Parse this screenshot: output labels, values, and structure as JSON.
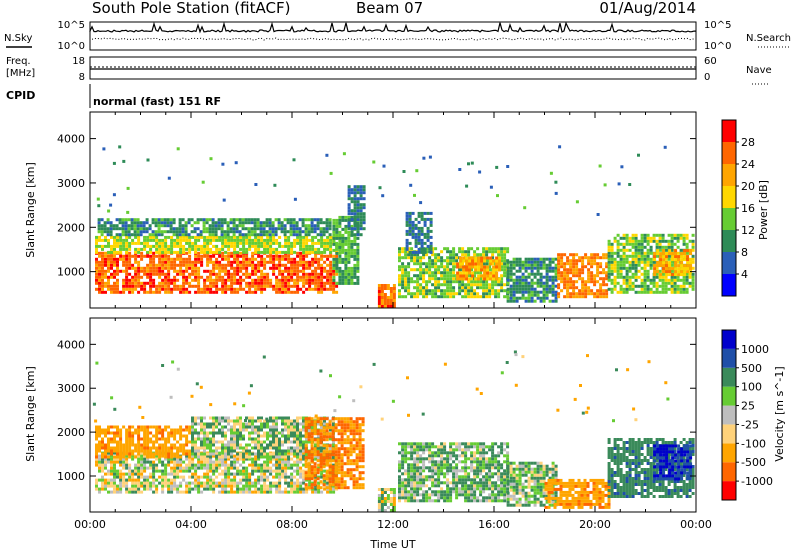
{
  "header": {
    "station": "South Pole Station (fitACF)",
    "beam": "Beam 07",
    "date": "01/Aug/2014"
  },
  "top_panels": {
    "nsky_label": "N.Sky",
    "nsky_ticks": [
      "10^5",
      "10^0"
    ],
    "nsearch_label": "N.Search",
    "nsearch_ticks": [
      "10^5",
      "10^0"
    ],
    "freq_label": "Freq.",
    "freq_unit": "[MHz]",
    "freq_ticks": [
      "18",
      "8"
    ],
    "nave_label": "Nave",
    "nave_ticks": [
      "60",
      "0"
    ],
    "cpid_label": "CPID",
    "cpid_text": "normal (fast) 151 RF"
  },
  "colors": {
    "power": [
      "#0000ff",
      "#2a5fb8",
      "#2e8b57",
      "#66cc33",
      "#ffd700",
      "#ffa500",
      "#ff6600",
      "#ff0000"
    ],
    "velocity": [
      "#ff0000",
      "#ff6600",
      "#ffa500",
      "#ffd27a",
      "#bebebe",
      "#66cc33",
      "#3a8a5a",
      "#1f4fa8",
      "#0000cc"
    ]
  },
  "chart_data": [
    {
      "type": "heatmap",
      "panel": "power",
      "ylabel": "Slant Range [km]",
      "ylim": [
        180,
        4600
      ],
      "yticks": [
        "1000",
        "2000",
        "3000",
        "4000"
      ],
      "xlim": [
        "00:00",
        "24:00"
      ],
      "colorbar": {
        "label": "Power [dB]",
        "ticks": [
          "4",
          "8",
          "12",
          "16",
          "20",
          "24",
          "28"
        ],
        "range": [
          0,
          32
        ]
      },
      "regions": [
        {
          "t0": 0.2,
          "t1": 9.8,
          "r0": 500,
          "r1": 1400,
          "level": 26
        },
        {
          "t0": 0.2,
          "t1": 10.0,
          "r0": 1400,
          "r1": 1800,
          "level": 16
        },
        {
          "t0": 0.3,
          "t1": 9.5,
          "r0": 1800,
          "r1": 2200,
          "level": 10
        },
        {
          "t0": 9.6,
          "t1": 10.6,
          "r0": 700,
          "r1": 2200,
          "level": 12
        },
        {
          "t0": 10.2,
          "t1": 10.8,
          "r0": 1800,
          "r1": 2900,
          "level": 8
        },
        {
          "t0": 11.4,
          "t1": 12.0,
          "r0": 180,
          "r1": 700,
          "level": 26
        },
        {
          "t0": 12.2,
          "t1": 16.5,
          "r0": 400,
          "r1": 1500,
          "level": 14
        },
        {
          "t0": 12.5,
          "t1": 13.5,
          "r0": 1400,
          "r1": 2300,
          "level": 8
        },
        {
          "t0": 14.5,
          "t1": 16.2,
          "r0": 800,
          "r1": 1300,
          "level": 22
        },
        {
          "t0": 16.5,
          "t1": 18.5,
          "r0": 300,
          "r1": 1300,
          "level": 10
        },
        {
          "t0": 18.5,
          "t1": 20.5,
          "r0": 400,
          "r1": 1400,
          "level": 24
        },
        {
          "t0": 20.5,
          "t1": 23.9,
          "r0": 500,
          "r1": 1800,
          "level": 14
        },
        {
          "t0": 22.3,
          "t1": 23.8,
          "r0": 900,
          "r1": 1500,
          "level": 22
        }
      ]
    },
    {
      "type": "heatmap",
      "panel": "velocity",
      "ylabel": "Slant Range [km]",
      "ylim": [
        180,
        4600
      ],
      "yticks": [
        "1000",
        "2000",
        "3000",
        "4000"
      ],
      "xlim": [
        "00:00",
        "24:00"
      ],
      "xticks": [
        "00:00",
        "04:00",
        "08:00",
        "12:00",
        "16:00",
        "20:00",
        "00:00"
      ],
      "xlabel": "Time UT",
      "colorbar": {
        "label": "Velocity [m s^-1]",
        "ticks": [
          "1000",
          "500",
          "100",
          "25",
          "-25",
          "-100",
          "-500",
          "-1000"
        ]
      },
      "regions": [
        {
          "t0": 0.2,
          "t1": 9.8,
          "r0": 600,
          "r1": 1500,
          "level": 0.2
        },
        {
          "t0": 0.2,
          "t1": 4.0,
          "r0": 1400,
          "r1": 2100,
          "level": -400
        },
        {
          "t0": 4.0,
          "t1": 9.6,
          "r0": 1400,
          "r1": 2300,
          "level": 60
        },
        {
          "t0": 8.5,
          "t1": 10.8,
          "r0": 700,
          "r1": 2300,
          "level": -500
        },
        {
          "t0": 11.4,
          "t1": 12.0,
          "r0": 180,
          "r1": 700,
          "level": 0.2
        },
        {
          "t0": 12.2,
          "t1": 16.5,
          "r0": 400,
          "r1": 1700,
          "level": 100
        },
        {
          "t0": 16.5,
          "t1": 18.5,
          "r0": 300,
          "r1": 1300,
          "level": 60
        },
        {
          "t0": 18.0,
          "t1": 20.5,
          "r0": 250,
          "r1": 900,
          "level": -400
        },
        {
          "t0": 20.5,
          "t1": 23.9,
          "r0": 500,
          "r1": 1800,
          "level": 400
        },
        {
          "t0": 22.3,
          "t1": 23.8,
          "r0": 900,
          "r1": 1700,
          "level": 1000
        }
      ]
    }
  ]
}
